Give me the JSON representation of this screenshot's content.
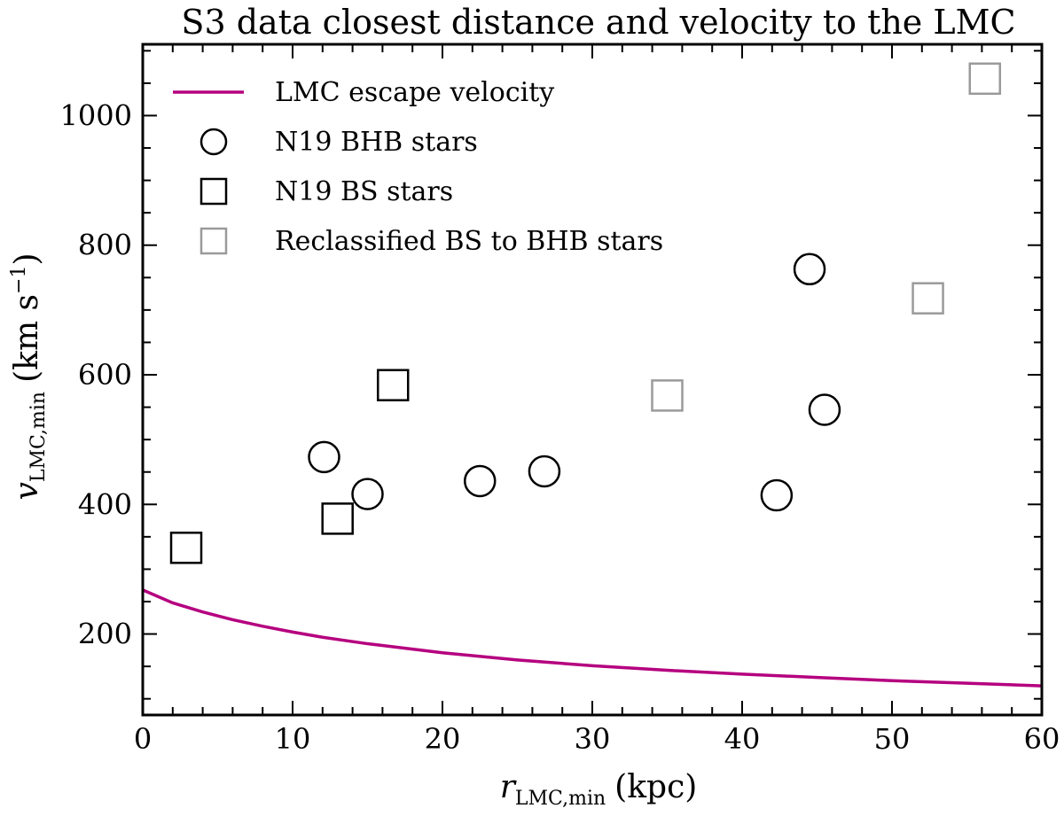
{
  "chart_data": {
    "type": "scatter",
    "title": "S3 data closest distance and velocity to the LMC",
    "xlabel": {
      "symbol": "r",
      "subscript": "LMC,min",
      "unit": "(kpc)"
    },
    "ylabel": {
      "symbol": "v",
      "subscript": "LMC,min",
      "unit_prefix": "(km s",
      "unit_exponent": "−1",
      "unit_suffix": ")"
    },
    "xlim": [
      0,
      60
    ],
    "ylim": [
      75,
      1110
    ],
    "x_ticks": [
      0,
      10,
      20,
      30,
      40,
      50,
      60
    ],
    "y_ticks": [
      200,
      400,
      600,
      800,
      1000
    ],
    "legend_position": "top-left",
    "series": [
      {
        "name": "LMC escape velocity",
        "kind": "line",
        "color": "#b5007f",
        "x": [
          0,
          2,
          4,
          6,
          8,
          10,
          12,
          15,
          20,
          25,
          30,
          35,
          40,
          45,
          50,
          55,
          60
        ],
        "y": [
          268,
          248,
          234,
          222,
          212,
          203,
          195,
          185,
          171,
          160,
          151,
          144,
          138,
          133,
          128,
          124,
          120
        ]
      },
      {
        "name": "N19 BHB stars",
        "kind": "scatter",
        "marker": "circle",
        "color": "#000000",
        "x": [
          12.1,
          15.0,
          22.5,
          26.8,
          42.3,
          44.5,
          45.5
        ],
        "y": [
          473,
          416,
          436,
          451,
          414,
          763,
          546
        ]
      },
      {
        "name": "N19 BS stars",
        "kind": "scatter",
        "marker": "square",
        "color": "#000000",
        "x": [
          2.9,
          13.0,
          16.7
        ],
        "y": [
          333,
          378,
          584
        ]
      },
      {
        "name": "Reclassified BS to BHB stars",
        "kind": "scatter",
        "marker": "square",
        "color": "#9a9a9a",
        "x": [
          35.0,
          52.4,
          56.2
        ],
        "y": [
          568,
          718,
          1057
        ]
      }
    ]
  }
}
